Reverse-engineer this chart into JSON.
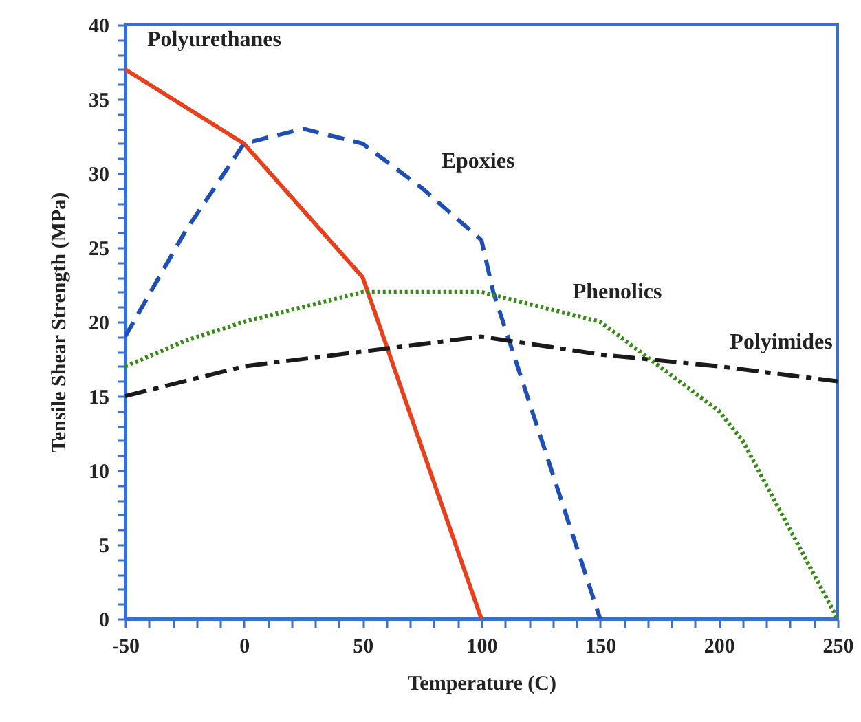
{
  "chart_data": {
    "type": "line",
    "xlabel": "Temperature (C)",
    "ylabel": "Tensile Shear Strength (MPa)",
    "xlim": [
      -50,
      250
    ],
    "ylim": [
      0,
      40
    ],
    "xticks": [
      -50,
      {
        "value": -40,
        "label": null
      },
      {
        "value": -30,
        "label": null
      },
      {
        "value": -20,
        "label": null
      },
      {
        "value": -10,
        "label": null
      },
      0,
      {
        "value": 10,
        "label": null
      },
      {
        "value": 20,
        "label": null
      },
      {
        "value": 30,
        "label": null
      },
      {
        "value": 40,
        "label": null
      },
      50,
      {
        "value": 60,
        "label": null
      },
      {
        "value": 70,
        "label": null
      },
      {
        "value": 80,
        "label": null
      },
      {
        "value": 90,
        "label": null
      },
      100,
      {
        "value": 110,
        "label": null
      },
      {
        "value": 120,
        "label": null
      },
      {
        "value": 130,
        "label": null
      },
      {
        "value": 140,
        "label": null
      },
      150,
      {
        "value": 160,
        "label": null
      },
      {
        "value": 170,
        "label": null
      },
      {
        "value": 180,
        "label": null
      },
      {
        "value": 190,
        "label": null
      },
      200,
      {
        "value": 210,
        "label": null
      },
      {
        "value": 220,
        "label": null
      },
      {
        "value": 230,
        "label": null
      },
      {
        "value": 240,
        "label": null
      },
      250
    ],
    "yticks": [
      0,
      {
        "value": 1,
        "label": null
      },
      {
        "value": 2,
        "label": null
      },
      {
        "value": 3,
        "label": null
      },
      {
        "value": 4,
        "label": null
      },
      5,
      {
        "value": 6,
        "label": null
      },
      {
        "value": 7,
        "label": null
      },
      {
        "value": 8,
        "label": null
      },
      {
        "value": 9,
        "label": null
      },
      10,
      {
        "value": 11,
        "label": null
      },
      {
        "value": 12,
        "label": null
      },
      {
        "value": 13,
        "label": null
      },
      {
        "value": 14,
        "label": null
      },
      15,
      {
        "value": 16,
        "label": null
      },
      {
        "value": 17,
        "label": null
      },
      {
        "value": 18,
        "label": null
      },
      {
        "value": 19,
        "label": null
      },
      20,
      {
        "value": 21,
        "label": null
      },
      {
        "value": 22,
        "label": null
      },
      {
        "value": 23,
        "label": null
      },
      {
        "value": 24,
        "label": null
      },
      25,
      {
        "value": 26,
        "label": null
      },
      {
        "value": 27,
        "label": null
      },
      {
        "value": 28,
        "label": null
      },
      {
        "value": 29,
        "label": null
      },
      30,
      {
        "value": 31,
        "label": null
      },
      {
        "value": 32,
        "label": null
      },
      {
        "value": 33,
        "label": null
      },
      {
        "value": 34,
        "label": null
      },
      35,
      {
        "value": 36,
        "label": null
      },
      {
        "value": 37,
        "label": null
      },
      {
        "value": 38,
        "label": null
      },
      {
        "value": 39,
        "label": null
      },
      40
    ],
    "grid": false,
    "legend": false,
    "marker": "none",
    "series": [
      {
        "name": "Polyurethanes",
        "color": "#e8401c",
        "line_style": "solid",
        "x": [
          -50,
          0,
          50,
          100
        ],
        "values": [
          37,
          32,
          23,
          0
        ]
      },
      {
        "name": "Epoxies",
        "color": "#1f4fb5",
        "line_style": "dashed",
        "x": [
          -50,
          -25,
          0,
          25,
          50,
          75,
          100,
          105,
          150
        ],
        "values": [
          19,
          26,
          32,
          33,
          32,
          29,
          25.5,
          22,
          0
        ]
      },
      {
        "name": "Phenolics",
        "color": "#3a8a1a",
        "line_style": "dotted",
        "x": [
          -50,
          -25,
          0,
          25,
          50,
          100,
          150,
          175,
          200,
          210,
          250
        ],
        "values": [
          17,
          18.7,
          20,
          21,
          22,
          22,
          20,
          17,
          14,
          12,
          0
        ]
      },
      {
        "name": "Polyimides",
        "color": "#1a1a1a",
        "line_style": "dashdot",
        "x": [
          -50,
          0,
          50,
          100,
          150,
          200,
          250
        ],
        "values": [
          15,
          17,
          18,
          19,
          17.8,
          17,
          16
        ]
      }
    ]
  }
}
